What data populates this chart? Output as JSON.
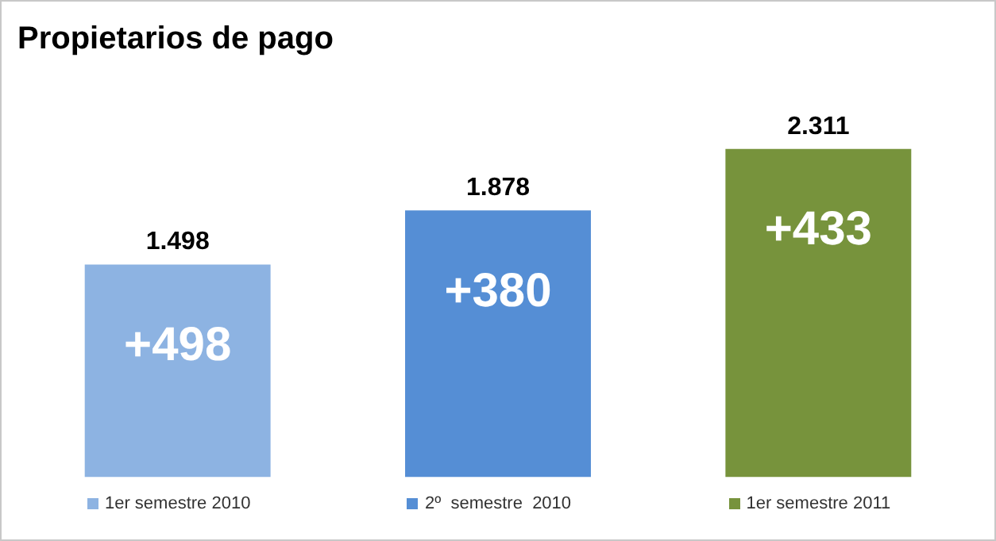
{
  "chart_data": {
    "type": "bar",
    "title": "Propietarios de pago",
    "categories": [
      "1er semestre 2010",
      "2º  semestre  2010",
      "1er semestre 2011"
    ],
    "values": [
      1498,
      1878,
      2311
    ],
    "value_labels": [
      "1.498",
      "1.878",
      "2.311"
    ],
    "colors": [
      "#8db3e2",
      "#558ed5",
      "#77933c"
    ],
    "annotations": [
      "+498",
      "+380",
      "+433"
    ],
    "grid": false,
    "tick_labels": "x"
  }
}
